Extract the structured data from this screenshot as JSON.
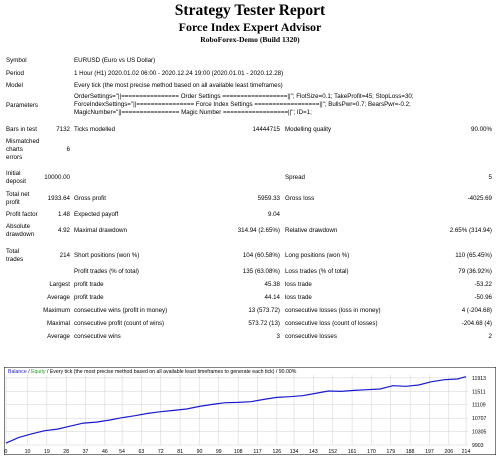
{
  "header": {
    "title": "Strategy Tester Report",
    "subtitle": "Force Index Expert Advisor",
    "server": "RoboForex-Demo (Build 1320)"
  },
  "info": {
    "symbol_label": "Symbol",
    "symbol_value": "EURUSD (Euro vs US Dollar)",
    "period_label": "Period",
    "period_value": "1 Hour (H1) 2020.01.02 06:00 - 2020.12.24 19:00 (2020.01.01 - 2020.12.28)",
    "model_label": "Model",
    "model_value": "Every tick (the most precise method based on all available least timeframes)",
    "parameters_label": "Parameters",
    "parameters_line1": "OrderSettings=\"||================ Order Settings ==================||\"; FlotSize=0.1; TakeProfit=45; StopLoss=30;",
    "parameters_line2": "ForceIndexSettings=\"||================ Force Index Settings ==================||\"; BullsPwr=0.7; BearsPwr=-0.2;",
    "parameters_line3": "MagicNumber=\"||================ Magic Number ==================||\"; ID=1;"
  },
  "stats": {
    "bars_label": "Bars in test",
    "bars_value": "7132",
    "ticks_label": "Ticks modelled",
    "ticks_value": "14444715",
    "quality_label": "Modelling quality",
    "quality_value": "90.00%",
    "mismatch_label_1": "Mismatched",
    "mismatch_label_2": "charts",
    "mismatch_label_3": "errors",
    "mismatch_value": "6",
    "deposit_label_1": "Initial",
    "deposit_label_2": "deposit",
    "deposit_value": "10000.00",
    "spread_label": "Spread",
    "spread_value": "5",
    "netprofit_label_1": "Total net",
    "netprofit_label_2": "profit",
    "netprofit_value": "1933.64",
    "grossprofit_label": "Gross profit",
    "grossprofit_value": "5959.33",
    "grossloss_label": "Gross loss",
    "grossloss_value": "-4025.69",
    "pf_label": "Profit factor",
    "pf_value": "1.48",
    "payoff_label": "Expected payoff",
    "payoff_value": "9.04",
    "absdd_label_1": "Absolute",
    "absdd_label_2": "drawdown",
    "absdd_value": "4.92",
    "maxdd_label": "Maximal drawdown",
    "maxdd_value": "314.94 (2.65%)",
    "reldd_label": "Relative drawdown",
    "reldd_value": "2.65% (314.94)",
    "trades_label_1": "Total",
    "trades_label_2": "trades",
    "trades_value": "214",
    "short_label": "Short positions (won %)",
    "short_value": "104 (60.58%)",
    "long_label": "Long positions (won %)",
    "long_value": "110 (65.45%)",
    "profittrades_label": "Profit trades (% of total)",
    "profittrades_value": "135 (63.08%)",
    "losstrades_label": "Loss trades (% of total)",
    "losstrades_value": "79 (36.92%)",
    "largest_label": "Largest",
    "largest_profit_label": "profit trade",
    "largest_profit_value": "45.38",
    "largest_loss_label": "loss trade",
    "largest_loss_value": "-53.22",
    "average_label": "Average",
    "average_profit_label": "profit trade",
    "average_profit_value": "44.14",
    "average_loss_label": "loss trade",
    "average_loss_value": "-50.96",
    "maximum_label": "Maximum",
    "max_wins_label": "consecutive wins (profit in money)",
    "max_wins_value": "13 (573.72)",
    "max_losses_label": "consecutive losses (loss in money)",
    "max_losses_value": "4 (-204.68)",
    "maximal_label": "Maximal",
    "maximal_profit_label": "consecutive profit (count of wins)",
    "maximal_profit_value": "573.72 (13)",
    "maximal_loss_label": "consecutive loss (count of losses)",
    "maximal_loss_value": "-204.68 (4)",
    "avg_label": "Average",
    "avg_wins_label": "consecutive wins",
    "avg_wins_value": "3",
    "avg_losses_label": "consecutive losses",
    "avg_losses_value": "2"
  },
  "chart_data": {
    "type": "line",
    "legend": "Balance / Equity / Every tick (the most precise method based on all available least timeframes to generate each tick) / 90.00%",
    "legend_balance": "Balance",
    "legend_equity": "Equity",
    "legend_rest": " / Every tick (the most precise method based on all available least timeframes to generate each tick) / 90.00%",
    "line_color": "#1a1acc",
    "x_ticks": [
      "0",
      "10",
      "19",
      "28",
      "37",
      "46",
      "54",
      "63",
      "72",
      "81",
      "90",
      "99",
      "108",
      "117",
      "126",
      "134",
      "143",
      "152",
      "161",
      "170",
      "179",
      "188",
      "197",
      "206",
      "214"
    ],
    "y_ticks": [
      "11913",
      "11511",
      "11109",
      "10707",
      "10305",
      "9903"
    ],
    "ylim": [
      9903,
      12000
    ],
    "xlim": [
      0,
      214
    ],
    "series": [
      {
        "x": [
          0,
          6,
          12,
          18,
          24,
          30,
          36,
          42,
          48,
          54,
          60,
          66,
          72,
          78,
          84,
          90,
          96,
          102,
          108,
          114,
          120,
          126,
          132,
          138,
          144,
          150,
          156,
          162,
          168,
          174,
          180,
          186,
          192,
          198,
          204,
          210,
          214
        ],
        "y": [
          9960,
          10130,
          10240,
          10330,
          10380,
          10470,
          10560,
          10590,
          10650,
          10720,
          10780,
          10850,
          10900,
          10940,
          10980,
          11060,
          11120,
          11170,
          11180,
          11200,
          11270,
          11330,
          11350,
          11380,
          11450,
          11520,
          11510,
          11540,
          11560,
          11580,
          11680,
          11660,
          11700,
          11800,
          11860,
          11880,
          11950
        ]
      }
    ]
  }
}
